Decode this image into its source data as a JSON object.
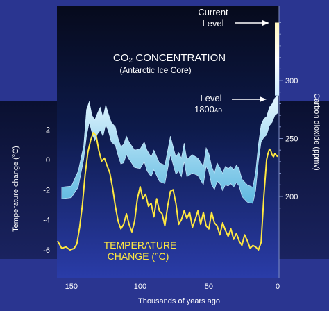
{
  "chart_data": {
    "type": "area",
    "xlabel": "Thousands of years ago",
    "x_ticks": [
      150,
      100,
      50,
      0
    ],
    "x_range": [
      160,
      0
    ],
    "left_axis": {
      "label": "Temperature change (°C)",
      "ticks": [
        2,
        0,
        -2,
        -4,
        -6
      ],
      "range": [
        -7,
        3
      ]
    },
    "right_axis": {
      "label": "Carbon dioxide (ppmv)",
      "ticks": [
        300,
        250,
        200
      ],
      "range": [
        180,
        360
      ]
    },
    "annotations": {
      "co2_title": "CO₂ CONCENTRATION",
      "co2_subtitle": "(Antarctic Ice Core)",
      "current_level_line1": "Current",
      "current_level_line2": "Level",
      "level_1800_line1": "Level",
      "level_1800_line2_main": "1800",
      "level_1800_line2_sub": "AD",
      "temp_title_line1": "TEMPERATURE",
      "temp_title_line2": "CHANGE (°C)"
    },
    "current_co2_level": 350,
    "series": [
      {
        "name": "CO₂ CONCENTRATION",
        "color": "#a9ddf2",
        "x": [
          157,
          150,
          145,
          141,
          139,
          137,
          135,
          133,
          131,
          129,
          127,
          125,
          123,
          121,
          118,
          116,
          114,
          112,
          110,
          108,
          104,
          100,
          97,
          95,
          92,
          90,
          86,
          82,
          78,
          74,
          72,
          70,
          68,
          66,
          62,
          58,
          54,
          52,
          50,
          48,
          46,
          44,
          42,
          40,
          38,
          36,
          34,
          32,
          30,
          28,
          26,
          22,
          18,
          16,
          14,
          12,
          10,
          8,
          6,
          4,
          2,
          0
        ],
        "lower": [
          198,
          199,
          208,
          232,
          252,
          264,
          255,
          248,
          254,
          257,
          252,
          262,
          256,
          247,
          244,
          235,
          228,
          229,
          236,
          232,
          225,
          224,
          230,
          222,
          217,
          223,
          213,
          211,
          236,
          219,
          222,
          217,
          230,
          217,
          220,
          218,
          210,
          226,
          221,
          210,
          206,
          213,
          211,
          205,
          210,
          209,
          211,
          208,
          212,
          209,
          200,
          195,
          194,
          205,
          230,
          247,
          251,
          253,
          261,
          264,
          270,
          272
        ],
        "upper": [
          208,
          209,
          222,
          244,
          275,
          282,
          270,
          266,
          272,
          277,
          268,
          279,
          271,
          264,
          260,
          250,
          243,
          245,
          252,
          247,
          240,
          241,
          247,
          240,
          234,
          240,
          229,
          227,
          252,
          234,
          238,
          233,
          246,
          232,
          236,
          233,
          226,
          242,
          237,
          226,
          220,
          229,
          225,
          220,
          226,
          224,
          226,
          223,
          227,
          224,
          215,
          210,
          208,
          221,
          245,
          262,
          267,
          269,
          277,
          280,
          285,
          287
        ]
      },
      {
        "name": "TEMPERATURE CHANGE (°C)",
        "color": "#ffe840",
        "x": [
          160,
          157,
          154,
          151,
          148,
          146,
          144,
          142,
          140,
          138,
          136,
          134,
          132,
          130,
          128,
          126,
          124,
          122,
          120,
          118,
          116,
          114,
          112,
          110,
          108,
          106,
          104,
          102,
          100,
          98,
          96,
          94,
          92,
          90,
          88,
          86,
          84,
          82,
          80,
          78,
          76,
          74,
          72,
          70,
          68,
          66,
          64,
          62,
          60,
          58,
          56,
          54,
          52,
          50,
          48,
          46,
          44,
          42,
          40,
          38,
          36,
          34,
          32,
          30,
          28,
          26,
          24,
          22,
          20,
          18,
          16,
          14,
          12,
          10,
          8,
          7,
          6,
          5,
          4,
          3,
          2,
          1,
          0
        ],
        "y": [
          -5.4,
          -5.9,
          -5.8,
          -6.0,
          -5.9,
          -5.6,
          -4.5,
          -3.0,
          -1.0,
          0.5,
          1.3,
          1.8,
          1.6,
          0.6,
          -0.1,
          0.1,
          -0.4,
          -0.9,
          -1.9,
          -3.1,
          -4.1,
          -4.6,
          -4.3,
          -3.6,
          -4.3,
          -4.8,
          -4.1,
          -2.6,
          -1.8,
          -2.6,
          -2.3,
          -3.1,
          -2.9,
          -3.8,
          -2.6,
          -3.4,
          -3.6,
          -4.4,
          -3.1,
          -2.1,
          -2.0,
          -2.9,
          -4.3,
          -4.0,
          -3.4,
          -3.9,
          -3.5,
          -4.5,
          -4.0,
          -3.4,
          -4.3,
          -3.5,
          -4.4,
          -4.6,
          -3.5,
          -4.2,
          -4.4,
          -5.0,
          -4.2,
          -4.7,
          -5.1,
          -4.6,
          -5.3,
          -4.9,
          -5.4,
          -5.7,
          -5.0,
          -5.4,
          -5.9,
          -5.7,
          -5.8,
          -6.0,
          -5.5,
          -2.4,
          0.0,
          0.4,
          0.7,
          0.6,
          0.3,
          0.2,
          0.4,
          0.3,
          0.2
        ]
      }
    ]
  }
}
